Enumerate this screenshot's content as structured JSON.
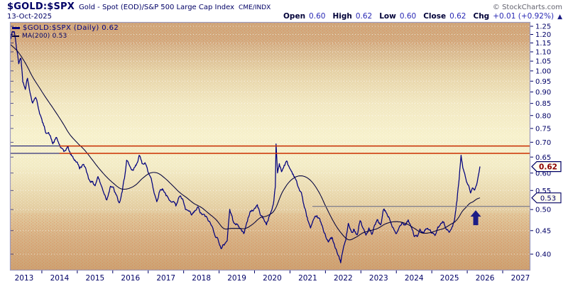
{
  "header": {
    "symbol": "$GOLD:$SPX",
    "description": "Gold - Spot (EOD)/S&P 500 Large Cap Index",
    "exchange": "CME/INDX",
    "copyright": "© StockCharts.com",
    "date": "13-Oct-2025",
    "quote": {
      "open_label": "Open",
      "open": "0.60",
      "high_label": "High",
      "high": "0.62",
      "low_label": "Low",
      "low": "0.60",
      "close_label": "Close",
      "close": "0.62",
      "chg_label": "Chg",
      "chg": "+0.01 (+0.92%)",
      "direction": "▲"
    }
  },
  "legend": {
    "price_label": "$GOLD:$SPX (Daily) 0.62",
    "ma_label": "MA(200) 0.53"
  },
  "badges": {
    "price": "0.62",
    "ma": "0.53"
  },
  "colors": {
    "price_line": "#00007e",
    "ma_line": "#00003c",
    "resistance_line": "#cc2f00",
    "baseline_navy": "#000066",
    "support_line": "#76768c",
    "arrow": "#1c1c86",
    "axis_border": "#9c9abe",
    "tick_text": "#000066",
    "badge_price_text": "#8c0000",
    "badge_ma_text": "#000066",
    "grid_dot": "#ffffff"
  },
  "chart_data": {
    "type": "line",
    "scale": "log",
    "title": "$GOLD:$SPX (Daily)",
    "ylabel": "",
    "xlabel": "",
    "ylim": [
      0.37,
      1.27
    ],
    "y_ticks": [
      0.4,
      0.45,
      0.5,
      0.55,
      0.6,
      0.65,
      0.7,
      0.75,
      0.8,
      0.85,
      0.9,
      0.95,
      1.0,
      1.05,
      1.1,
      1.15,
      1.2,
      1.25
    ],
    "x_ticks": [
      2013,
      2014,
      2015,
      2016,
      2017,
      2018,
      2019,
      2020,
      2021,
      2022,
      2023,
      2024,
      2025,
      2026,
      2027
    ],
    "legend_position": "top-left",
    "grid": "horizontal-dotted",
    "series": [
      {
        "name": "$GOLD:$SPX (Daily)",
        "last": 0.62,
        "points": [
          [
            2013.0,
            1.17
          ],
          [
            2013.04,
            1.21
          ],
          [
            2013.1,
            1.22
          ],
          [
            2013.16,
            1.12
          ],
          [
            2013.22,
            1.04
          ],
          [
            2013.28,
            1.07
          ],
          [
            2013.33,
            0.95
          ],
          [
            2013.4,
            0.92
          ],
          [
            2013.46,
            0.97
          ],
          [
            2013.52,
            0.9
          ],
          [
            2013.6,
            0.855
          ],
          [
            2013.68,
            0.88
          ],
          [
            2013.76,
            0.83
          ],
          [
            2013.85,
            0.78
          ],
          [
            2013.95,
            0.74
          ],
          [
            2014.05,
            0.73
          ],
          [
            2014.15,
            0.695
          ],
          [
            2014.25,
            0.715
          ],
          [
            2014.35,
            0.685
          ],
          [
            2014.45,
            0.665
          ],
          [
            2014.55,
            0.685
          ],
          [
            2014.63,
            0.66
          ],
          [
            2014.72,
            0.645
          ],
          [
            2014.8,
            0.635
          ],
          [
            2014.88,
            0.615
          ],
          [
            2014.96,
            0.625
          ],
          [
            2015.05,
            0.615
          ],
          [
            2015.12,
            0.585
          ],
          [
            2015.2,
            0.575
          ],
          [
            2015.3,
            0.565
          ],
          [
            2015.38,
            0.59
          ],
          [
            2015.46,
            0.565
          ],
          [
            2015.54,
            0.545
          ],
          [
            2015.62,
            0.525
          ],
          [
            2015.72,
            0.565
          ],
          [
            2015.8,
            0.555
          ],
          [
            2015.88,
            0.535
          ],
          [
            2015.96,
            0.515
          ],
          [
            2016.04,
            0.545
          ],
          [
            2016.1,
            0.585
          ],
          [
            2016.16,
            0.64
          ],
          [
            2016.25,
            0.615
          ],
          [
            2016.33,
            0.605
          ],
          [
            2016.42,
            0.625
          ],
          [
            2016.5,
            0.655
          ],
          [
            2016.58,
            0.63
          ],
          [
            2016.66,
            0.635
          ],
          [
            2016.75,
            0.6
          ],
          [
            2016.83,
            0.585
          ],
          [
            2016.91,
            0.545
          ],
          [
            2016.98,
            0.52
          ],
          [
            2017.06,
            0.55
          ],
          [
            2017.15,
            0.555
          ],
          [
            2017.25,
            0.535
          ],
          [
            2017.33,
            0.52
          ],
          [
            2017.42,
            0.525
          ],
          [
            2017.5,
            0.51
          ],
          [
            2017.6,
            0.535
          ],
          [
            2017.68,
            0.525
          ],
          [
            2017.76,
            0.5
          ],
          [
            2017.85,
            0.495
          ],
          [
            2017.93,
            0.485
          ],
          [
            2018.02,
            0.495
          ],
          [
            2018.1,
            0.505
          ],
          [
            2018.18,
            0.49
          ],
          [
            2018.28,
            0.485
          ],
          [
            2018.38,
            0.475
          ],
          [
            2018.48,
            0.46
          ],
          [
            2018.58,
            0.44
          ],
          [
            2018.68,
            0.425
          ],
          [
            2018.74,
            0.41
          ],
          [
            2018.82,
            0.42
          ],
          [
            2018.9,
            0.43
          ],
          [
            2018.97,
            0.5
          ],
          [
            2019.05,
            0.475
          ],
          [
            2019.15,
            0.465
          ],
          [
            2019.25,
            0.455
          ],
          [
            2019.35,
            0.445
          ],
          [
            2019.45,
            0.47
          ],
          [
            2019.52,
            0.495
          ],
          [
            2019.62,
            0.5
          ],
          [
            2019.72,
            0.51
          ],
          [
            2019.8,
            0.49
          ],
          [
            2019.9,
            0.475
          ],
          [
            2019.97,
            0.465
          ],
          [
            2020.05,
            0.485
          ],
          [
            2020.12,
            0.5
          ],
          [
            2020.17,
            0.52
          ],
          [
            2020.21,
            0.56
          ],
          [
            2020.23,
            0.695
          ],
          [
            2020.27,
            0.6
          ],
          [
            2020.32,
            0.63
          ],
          [
            2020.38,
            0.605
          ],
          [
            2020.45,
            0.625
          ],
          [
            2020.52,
            0.635
          ],
          [
            2020.6,
            0.615
          ],
          [
            2020.68,
            0.6
          ],
          [
            2020.76,
            0.585
          ],
          [
            2020.84,
            0.555
          ],
          [
            2020.92,
            0.545
          ],
          [
            2021.0,
            0.505
          ],
          [
            2021.08,
            0.48
          ],
          [
            2021.17,
            0.455
          ],
          [
            2021.25,
            0.47
          ],
          [
            2021.33,
            0.485
          ],
          [
            2021.42,
            0.475
          ],
          [
            2021.5,
            0.455
          ],
          [
            2021.58,
            0.44
          ],
          [
            2021.66,
            0.425
          ],
          [
            2021.75,
            0.435
          ],
          [
            2021.83,
            0.415
          ],
          [
            2021.91,
            0.4
          ],
          [
            2021.99,
            0.385
          ],
          [
            2022.06,
            0.41
          ],
          [
            2022.13,
            0.43
          ],
          [
            2022.2,
            0.465
          ],
          [
            2022.28,
            0.445
          ],
          [
            2022.36,
            0.455
          ],
          [
            2022.44,
            0.44
          ],
          [
            2022.52,
            0.475
          ],
          [
            2022.6,
            0.455
          ],
          [
            2022.68,
            0.44
          ],
          [
            2022.76,
            0.455
          ],
          [
            2022.84,
            0.44
          ],
          [
            2022.92,
            0.46
          ],
          [
            2023.0,
            0.475
          ],
          [
            2023.08,
            0.46
          ],
          [
            2023.16,
            0.5
          ],
          [
            2023.25,
            0.49
          ],
          [
            2023.33,
            0.475
          ],
          [
            2023.42,
            0.455
          ],
          [
            2023.5,
            0.44
          ],
          [
            2023.58,
            0.455
          ],
          [
            2023.66,
            0.47
          ],
          [
            2023.75,
            0.465
          ],
          [
            2023.83,
            0.475
          ],
          [
            2023.91,
            0.46
          ],
          [
            2023.99,
            0.44
          ],
          [
            2024.07,
            0.435
          ],
          [
            2024.15,
            0.45
          ],
          [
            2024.23,
            0.445
          ],
          [
            2024.31,
            0.455
          ],
          [
            2024.4,
            0.45
          ],
          [
            2024.48,
            0.445
          ],
          [
            2024.56,
            0.44
          ],
          [
            2024.64,
            0.455
          ],
          [
            2024.72,
            0.465
          ],
          [
            2024.8,
            0.47
          ],
          [
            2024.88,
            0.455
          ],
          [
            2024.96,
            0.445
          ],
          [
            2025.04,
            0.46
          ],
          [
            2025.1,
            0.48
          ],
          [
            2025.16,
            0.525
          ],
          [
            2025.22,
            0.585
          ],
          [
            2025.27,
            0.655
          ],
          [
            2025.32,
            0.615
          ],
          [
            2025.37,
            0.6
          ],
          [
            2025.42,
            0.575
          ],
          [
            2025.47,
            0.565
          ],
          [
            2025.53,
            0.545
          ],
          [
            2025.58,
            0.555
          ],
          [
            2025.64,
            0.55
          ],
          [
            2025.69,
            0.565
          ],
          [
            2025.73,
            0.585
          ],
          [
            2025.76,
            0.6
          ],
          [
            2025.785,
            0.62
          ]
        ]
      },
      {
        "name": "MA(200)",
        "last": 0.53,
        "points": [
          [
            2013.0,
            1.14
          ],
          [
            2013.2,
            1.1
          ],
          [
            2013.4,
            1.04
          ],
          [
            2013.6,
            0.97
          ],
          [
            2013.8,
            0.915
          ],
          [
            2014.0,
            0.865
          ],
          [
            2014.2,
            0.82
          ],
          [
            2014.4,
            0.775
          ],
          [
            2014.6,
            0.73
          ],
          [
            2014.8,
            0.7
          ],
          [
            2015.0,
            0.675
          ],
          [
            2015.2,
            0.645
          ],
          [
            2015.4,
            0.615
          ],
          [
            2015.6,
            0.59
          ],
          [
            2015.8,
            0.57
          ],
          [
            2016.0,
            0.555
          ],
          [
            2016.2,
            0.555
          ],
          [
            2016.4,
            0.565
          ],
          [
            2016.6,
            0.585
          ],
          [
            2016.8,
            0.6
          ],
          [
            2017.0,
            0.6
          ],
          [
            2017.2,
            0.585
          ],
          [
            2017.4,
            0.565
          ],
          [
            2017.6,
            0.545
          ],
          [
            2017.8,
            0.53
          ],
          [
            2018.0,
            0.515
          ],
          [
            2018.2,
            0.505
          ],
          [
            2018.4,
            0.49
          ],
          [
            2018.6,
            0.475
          ],
          [
            2018.8,
            0.455
          ],
          [
            2019.0,
            0.455
          ],
          [
            2019.2,
            0.455
          ],
          [
            2019.4,
            0.455
          ],
          [
            2019.6,
            0.465
          ],
          [
            2019.8,
            0.48
          ],
          [
            2020.0,
            0.485
          ],
          [
            2020.2,
            0.5
          ],
          [
            2020.4,
            0.545
          ],
          [
            2020.6,
            0.575
          ],
          [
            2020.8,
            0.59
          ],
          [
            2021.0,
            0.59
          ],
          [
            2021.2,
            0.575
          ],
          [
            2021.4,
            0.545
          ],
          [
            2021.6,
            0.505
          ],
          [
            2021.8,
            0.47
          ],
          [
            2022.0,
            0.445
          ],
          [
            2022.2,
            0.43
          ],
          [
            2022.4,
            0.435
          ],
          [
            2022.6,
            0.445
          ],
          [
            2022.8,
            0.45
          ],
          [
            2023.0,
            0.455
          ],
          [
            2023.2,
            0.465
          ],
          [
            2023.4,
            0.47
          ],
          [
            2023.6,
            0.47
          ],
          [
            2023.8,
            0.465
          ],
          [
            2024.0,
            0.455
          ],
          [
            2024.2,
            0.445
          ],
          [
            2024.4,
            0.445
          ],
          [
            2024.6,
            0.45
          ],
          [
            2024.8,
            0.455
          ],
          [
            2025.0,
            0.465
          ],
          [
            2025.1,
            0.47
          ],
          [
            2025.2,
            0.48
          ],
          [
            2025.3,
            0.495
          ],
          [
            2025.4,
            0.505
          ],
          [
            2025.5,
            0.515
          ],
          [
            2025.6,
            0.52
          ],
          [
            2025.7,
            0.527
          ],
          [
            2025.785,
            0.53
          ]
        ]
      }
    ],
    "overlays": {
      "hlines": [
        {
          "value": 0.687,
          "from": 2013.0,
          "color_key": "baseline_navy",
          "width": 1.0
        },
        {
          "value": 0.662,
          "from": 2013.0,
          "color_key": "baseline_navy",
          "width": 1.0
        },
        {
          "value": 0.687,
          "from": 2014.33,
          "color_key": "resistance_line",
          "width": 1.5
        },
        {
          "value": 0.662,
          "from": 2014.33,
          "color_key": "resistance_line",
          "width": 1.5
        },
        {
          "value": 0.508,
          "from": 2021.22,
          "color_key": "support_line",
          "width": 1.1
        }
      ],
      "arrow": {
        "x": 2025.67,
        "value": 0.5
      }
    }
  }
}
